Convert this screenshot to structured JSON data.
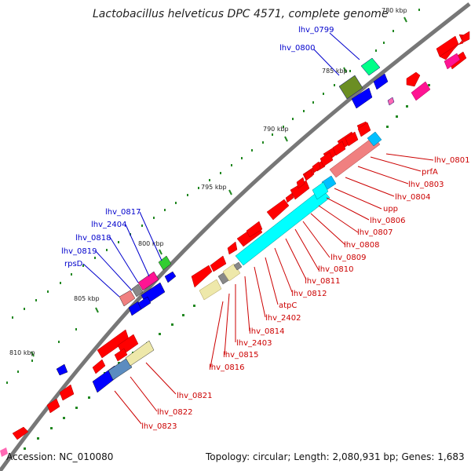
{
  "title": "Lactobacillus helveticus DPC 4571, complete genome",
  "footer": {
    "accession": "Accession: NC_010080",
    "topology": "Topology: circular; Length: 2,080,931 bp; Genes: 1,683"
  },
  "ticks": [
    "780 kbp",
    "785 kbp",
    "790 kbp",
    "795 kbp",
    "800 kbp",
    "805 kbp",
    "810 kbp"
  ],
  "colors": {
    "backbone": "#777777",
    "forward_gene": "#ff0000",
    "reverse_gene": "#0000ff",
    "rrna_like": "#00ffff",
    "pseudo": "#ffff99",
    "label_blue": "#0000cc",
    "label_red": "#cc0000",
    "tick_dot": "#228822"
  },
  "labels_blue": [
    "lhv_0799",
    "lhv_0800",
    "lhv_0817",
    "lhv_2404",
    "lhv_0818",
    "lhv_0819",
    "rpsD"
  ],
  "labels_red": [
    "lhv_0801",
    "prfA",
    "lhv_0803",
    "lhv_0804",
    "upp",
    "lhv_0806",
    "lhv_0807",
    "lhv_0808",
    "lhv_0809",
    "lhv_0810",
    "lhv_0811",
    "lhv_0812",
    "atpC",
    "lhv_2402",
    "lhv_0814",
    "lhv_2403",
    "lhv_0815",
    "lhv_0816",
    "lhv_0821",
    "lhv_0822",
    "lhv_0823"
  ]
}
